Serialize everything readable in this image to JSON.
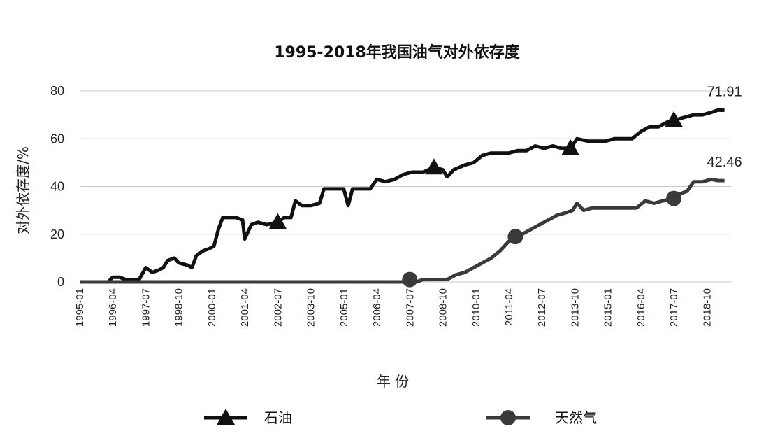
{
  "chart_data": {
    "type": "line",
    "title": "1995-2018年我国油气对外依存度",
    "xlabel": "年 份",
    "ylabel": "对外依存度/%",
    "ylim": [
      0,
      80
    ],
    "yticks": [
      0,
      20,
      40,
      60,
      80
    ],
    "grid": true,
    "legend_position": "bottom",
    "x_ticks": [
      "1995-01",
      "1996-04",
      "1997-07",
      "1998-10",
      "2000-01",
      "2001-04",
      "2002-07",
      "2003-10",
      "2005-01",
      "2006-04",
      "2007-07",
      "2008-10",
      "2010-01",
      "2011-04",
      "2012-07",
      "2013-10",
      "2015-01",
      "2016-04",
      "2017-07",
      "2018-10"
    ],
    "series": [
      {
        "name": "石油",
        "marker": "triangle",
        "color": "#111111",
        "end_label": "71.91",
        "marker_dates": [
          "2002-07",
          "2008-06",
          "2013-08",
          "2017-07"
        ],
        "points": [
          [
            "1995-01",
            0
          ],
          [
            "1996-02",
            0
          ],
          [
            "1996-04",
            2
          ],
          [
            "1996-07",
            2
          ],
          [
            "1996-10",
            1
          ],
          [
            "1997-04",
            1
          ],
          [
            "1997-07",
            6
          ],
          [
            "1997-10",
            4
          ],
          [
            "1998-01",
            5
          ],
          [
            "1998-03",
            6
          ],
          [
            "1998-05",
            9
          ],
          [
            "1998-08",
            10
          ],
          [
            "1998-10",
            8
          ],
          [
            "1999-02",
            7
          ],
          [
            "1999-04",
            6
          ],
          [
            "1999-06",
            11
          ],
          [
            "1999-09",
            13
          ],
          [
            "1999-12",
            14
          ],
          [
            "2000-02",
            15
          ],
          [
            "2000-04",
            22
          ],
          [
            "2000-06",
            27
          ],
          [
            "2000-09",
            27
          ],
          [
            "2000-12",
            27
          ],
          [
            "2001-03",
            26
          ],
          [
            "2001-04",
            18
          ],
          [
            "2001-07",
            24
          ],
          [
            "2001-10",
            25
          ],
          [
            "2002-02",
            24
          ],
          [
            "2002-07",
            25
          ],
          [
            "2002-10",
            27
          ],
          [
            "2003-01",
            27
          ],
          [
            "2003-03",
            34
          ],
          [
            "2003-06",
            32
          ],
          [
            "2003-10",
            32
          ],
          [
            "2004-02",
            33
          ],
          [
            "2004-04",
            39
          ],
          [
            "2004-08",
            39
          ],
          [
            "2004-12",
            39
          ],
          [
            "2005-01",
            39
          ],
          [
            "2005-03",
            32
          ],
          [
            "2005-05",
            39
          ],
          [
            "2005-10",
            39
          ],
          [
            "2006-01",
            39
          ],
          [
            "2006-04",
            43
          ],
          [
            "2006-08",
            42
          ],
          [
            "2006-12",
            43
          ],
          [
            "2007-04",
            45
          ],
          [
            "2007-08",
            46
          ],
          [
            "2008-01",
            46
          ],
          [
            "2008-06",
            48
          ],
          [
            "2008-10",
            47
          ],
          [
            "2008-12",
            44
          ],
          [
            "2009-03",
            47
          ],
          [
            "2009-08",
            49
          ],
          [
            "2009-12",
            50
          ],
          [
            "2010-04",
            53
          ],
          [
            "2010-08",
            54
          ],
          [
            "2010-12",
            54
          ],
          [
            "2011-04",
            54
          ],
          [
            "2011-08",
            55
          ],
          [
            "2011-12",
            55
          ],
          [
            "2012-04",
            57
          ],
          [
            "2012-08",
            56
          ],
          [
            "2012-12",
            57
          ],
          [
            "2013-04",
            56
          ],
          [
            "2013-08",
            56
          ],
          [
            "2013-11",
            60
          ],
          [
            "2014-04",
            59
          ],
          [
            "2014-08",
            59
          ],
          [
            "2014-12",
            59
          ],
          [
            "2015-04",
            60
          ],
          [
            "2015-08",
            60
          ],
          [
            "2015-12",
            60
          ],
          [
            "2016-04",
            63
          ],
          [
            "2016-08",
            65
          ],
          [
            "2016-12",
            65
          ],
          [
            "2017-04",
            67
          ],
          [
            "2017-08",
            68
          ],
          [
            "2017-12",
            69
          ],
          [
            "2018-04",
            70
          ],
          [
            "2018-08",
            70
          ],
          [
            "2018-12",
            71
          ],
          [
            "2019-03",
            72
          ],
          [
            "2019-06",
            71.91
          ]
        ]
      },
      {
        "name": "天然气",
        "marker": "circle",
        "color": "#3a3a3a",
        "end_label": "42.46",
        "marker_dates": [
          "2007-07",
          "2011-07",
          "2017-07"
        ],
        "points": [
          [
            "1995-01",
            0
          ],
          [
            "2007-04",
            0
          ],
          [
            "2007-07",
            1
          ],
          [
            "2007-10",
            0
          ],
          [
            "2008-01",
            1
          ],
          [
            "2008-06",
            1
          ],
          [
            "2008-12",
            1
          ],
          [
            "2009-04",
            3
          ],
          [
            "2009-08",
            4
          ],
          [
            "2009-12",
            6
          ],
          [
            "2010-04",
            8
          ],
          [
            "2010-08",
            10
          ],
          [
            "2010-12",
            13
          ],
          [
            "2011-04",
            17
          ],
          [
            "2011-07",
            19
          ],
          [
            "2011-10",
            20
          ],
          [
            "2012-02",
            22
          ],
          [
            "2012-06",
            24
          ],
          [
            "2012-10",
            26
          ],
          [
            "2013-02",
            28
          ],
          [
            "2013-06",
            29
          ],
          [
            "2013-09",
            30
          ],
          [
            "2013-11",
            33
          ],
          [
            "2014-02",
            30
          ],
          [
            "2014-06",
            31
          ],
          [
            "2014-10",
            31
          ],
          [
            "2015-02",
            31
          ],
          [
            "2015-06",
            31
          ],
          [
            "2015-10",
            31
          ],
          [
            "2016-02",
            31
          ],
          [
            "2016-06",
            34
          ],
          [
            "2016-10",
            33
          ],
          [
            "2017-02",
            34
          ],
          [
            "2017-07",
            35
          ],
          [
            "2017-10",
            37
          ],
          [
            "2018-01",
            38
          ],
          [
            "2018-04",
            42
          ],
          [
            "2018-08",
            42
          ],
          [
            "2018-12",
            43
          ],
          [
            "2019-03",
            42.5
          ],
          [
            "2019-06",
            42.46
          ]
        ]
      }
    ]
  }
}
